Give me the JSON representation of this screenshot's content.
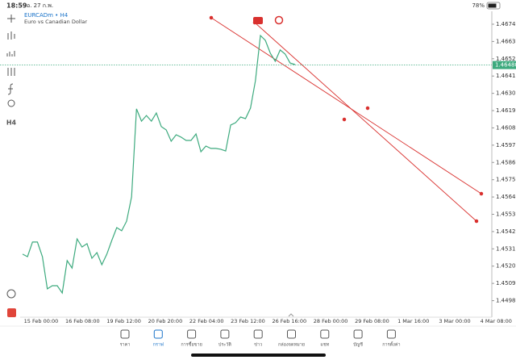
{
  "status_bar": {
    "time": "18:59",
    "date": "อ. 27 ก.พ.",
    "battery": "78%"
  },
  "chart": {
    "type": "line",
    "symbol": "EURCADm • H4",
    "description": "Euro vs Canadian Dollar",
    "timeframe_button": "H4",
    "color": "#3daa7e",
    "values": [
      1.45276,
      1.4526,
      1.45353,
      1.45353,
      1.4526,
      1.45055,
      1.45075,
      1.45075,
      1.45029,
      1.45235,
      1.45188,
      1.45373,
      1.45322,
      1.45343,
      1.4525,
      1.45286,
      1.45209,
      1.45276,
      1.45363,
      1.45445,
      1.45425,
      1.45486,
      1.45641,
      1.46201,
      1.46123,
      1.46159,
      1.46123,
      1.46175,
      1.46088,
      1.46067,
      1.45995,
      1.46036,
      1.46021,
      1.46,
      1.46,
      1.46041,
      1.45928,
      1.45964,
      1.45949,
      1.45949,
      1.45944,
      1.45933,
      1.46098,
      1.46113,
      1.46149,
      1.46139,
      1.46206,
      1.4638,
      1.46668,
      1.46637,
      1.46555,
      1.46504,
      1.46576,
      1.4655,
      1.46493,
      1.46483
    ],
    "ylim": [
      1.4488,
      1.46817
    ],
    "yticks": [
      {
        "value": 1.4674,
        "label": "1.46740"
      },
      {
        "value": 1.4663,
        "label": "1.46630"
      },
      {
        "value": 1.4652,
        "label": "1.46520"
      },
      {
        "value": 1.4641,
        "label": "1.46410"
      },
      {
        "value": 1.463,
        "label": "1.46300"
      },
      {
        "value": 1.4619,
        "label": "1.46190"
      },
      {
        "value": 1.4608,
        "label": "1.46080"
      },
      {
        "value": 1.4597,
        "label": "1.45970"
      },
      {
        "value": 1.4586,
        "label": "1.45860"
      },
      {
        "value": 1.4575,
        "label": "1.45750"
      },
      {
        "value": 1.4564,
        "label": "1.45640"
      },
      {
        "value": 1.4553,
        "label": "1.45530"
      },
      {
        "value": 1.4542,
        "label": "1.45420"
      },
      {
        "value": 1.4531,
        "label": "1.45310"
      },
      {
        "value": 1.452,
        "label": "1.45200"
      },
      {
        "value": 1.4509,
        "label": "1.45090"
      },
      {
        "value": 1.4498,
        "label": "1.44980"
      }
    ],
    "current_price": {
      "value": 1.4648,
      "label": "1.46480"
    },
    "xtick_labels": [
      "15 Feb 00:00",
      "16 Feb 08:00",
      "19 Feb 12:00",
      "20 Feb 20:00",
      "22 Feb 04:00",
      "23 Feb 12:00",
      "26 Feb 16:00",
      "28 Feb 00:00",
      "29 Feb 08:00",
      "1 Mar 16:00",
      "3 Mar 00:00",
      "4 Mar 08:00"
    ]
  },
  "nav": {
    "items": [
      "ราคา",
      "กราฟ",
      "การซื้อขาย",
      "ประวัติ",
      "ข่าว",
      "กล่องจดหมาย",
      "แชท",
      "บัญชี",
      "การตั้งค่า"
    ]
  }
}
